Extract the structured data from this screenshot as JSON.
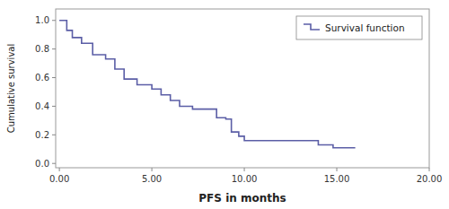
{
  "chart_data": {
    "type": "step",
    "xlabel": "PFS in months",
    "ylabel": "Cumulative survival",
    "x": [
      0.0,
      0.4,
      0.7,
      1.2,
      1.8,
      2.5,
      3.0,
      3.5,
      4.2,
      5.0,
      5.5,
      6.0,
      6.5,
      7.2,
      8.0,
      8.5,
      9.0,
      9.3,
      9.7,
      10.0,
      10.5,
      14.0,
      14.8,
      16.0
    ],
    "series": [
      {
        "name": "Survival function",
        "color": "#5b5ea6",
        "values": [
          1.0,
          0.93,
          0.88,
          0.84,
          0.76,
          0.73,
          0.66,
          0.59,
          0.55,
          0.52,
          0.48,
          0.44,
          0.4,
          0.38,
          0.38,
          0.32,
          0.31,
          0.22,
          0.19,
          0.16,
          0.16,
          0.13,
          0.11,
          0.11
        ]
      }
    ],
    "xlim": [
      -0.2,
      20.0
    ],
    "ylim": [
      -0.03,
      1.08
    ],
    "xticks": [
      {
        "value": 0.0,
        "label": "0.00"
      },
      {
        "value": 5.0,
        "label": "5.00"
      },
      {
        "value": 10.0,
        "label": "10.00"
      },
      {
        "value": 15.0,
        "label": "15.00"
      },
      {
        "value": 20.0,
        "label": "20.00"
      }
    ],
    "yticks": [
      {
        "value": 0.0,
        "label": "0.0"
      },
      0.2,
      0.4,
      0.6,
      0.8,
      {
        "value": 1.0,
        "label": "1.0"
      }
    ],
    "legend": "top-right",
    "grid": false
  }
}
